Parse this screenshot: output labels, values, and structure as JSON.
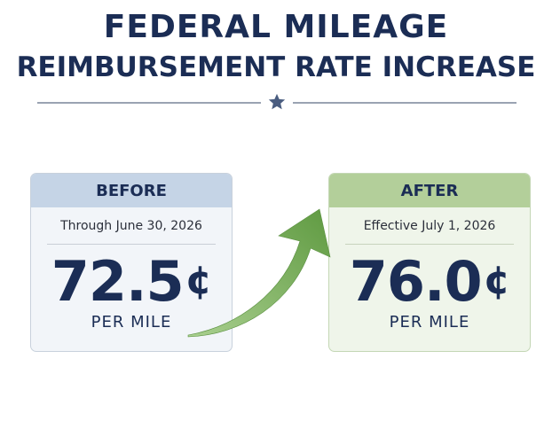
{
  "header": {
    "title_line1": "FEDERAL MILEAGE",
    "title_line2": "REIMBURSEMENT RATE INCREASE"
  },
  "before": {
    "label": "BEFORE",
    "date_text": "Through June 30, 2026",
    "value": "72.5",
    "currency": "¢",
    "unit": "PER MILE"
  },
  "after": {
    "label": "AFTER",
    "date_text": "Effective July 1, 2026",
    "value": "76.0",
    "currency": "¢",
    "unit": "PER MILE"
  },
  "icons": {
    "divider": "star-icon",
    "transition": "curved-arrow-icon"
  },
  "colors": {
    "navy": "#1b2d55",
    "before_header": "#c5d4e6",
    "after_header": "#b3cf9a",
    "arrow": "#6fa84f"
  }
}
